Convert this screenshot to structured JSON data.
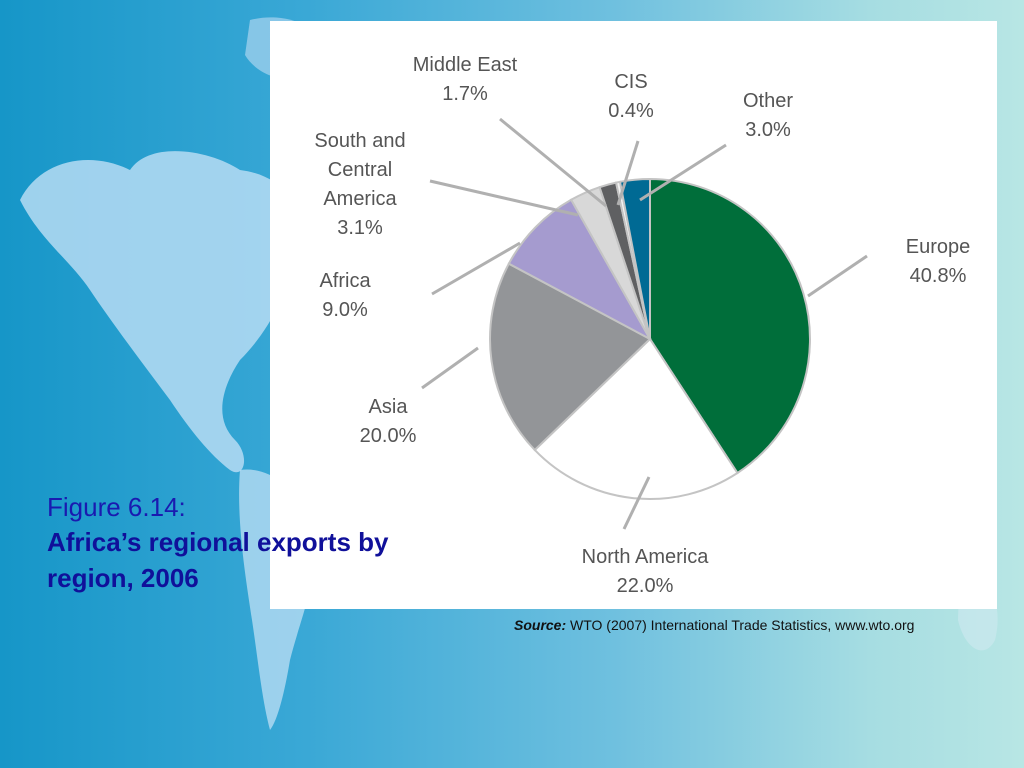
{
  "figure": {
    "number": "Figure 6.14:",
    "title": "Africa’s regional exports by region, 2006"
  },
  "source": {
    "label": "Source:",
    "text": "WTO (2007) International Trade Statistics, www.wto.org"
  },
  "colors": {
    "background_left": "#1696c8",
    "background_right": "#b8e6e4",
    "caption": "#1a1ab0"
  },
  "chart_data": {
    "type": "pie",
    "title": "",
    "unit": "%",
    "slices": [
      {
        "name": "Europe",
        "value": 40.8,
        "label": "40.8%",
        "color": "#006e3a"
      },
      {
        "name": "North America",
        "value": 22.0,
        "label": "22.0%",
        "color": "#ffffff"
      },
      {
        "name": "Asia",
        "value": 20.0,
        "label": "20.0%",
        "color": "#939598"
      },
      {
        "name": "Africa",
        "value": 9.0,
        "label": "9.0%",
        "color": "#a59bcf"
      },
      {
        "name": "South and Central America",
        "value": 3.1,
        "label": "3.1%",
        "color": "#d8d8d8"
      },
      {
        "name": "Middle East",
        "value": 1.7,
        "label": "1.7%",
        "color": "#5f6062"
      },
      {
        "name": "CIS",
        "value": 0.4,
        "label": "0.4%",
        "color": "#f2f2f2"
      },
      {
        "name": "Other",
        "value": 3.0,
        "label": "3.0%",
        "color": "#006a94"
      }
    ]
  }
}
